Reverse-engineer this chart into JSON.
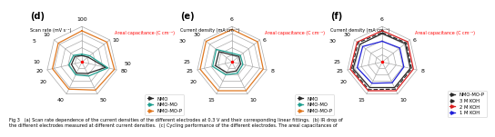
{
  "chart_d": {
    "title": "(d)",
    "num_axes": 7,
    "max_vals": [
      100,
      10,
      80,
      50,
      40,
      20,
      10
    ],
    "tick_labels": [
      "100",
      "10",
      "80",
      "50",
      "40",
      "20",
      "10"
    ],
    "left_label": "Scan rate (mV s⁻¹)",
    "left_vals": [
      "5",
      "10",
      "20"
    ],
    "right_val": "50",
    "red_label": "Areal capacitance (C cm⁻²)",
    "series": {
      "NMO": [
        18,
        2.2,
        55,
        18,
        14,
        6,
        2.5
      ],
      "NMO-MO": [
        22,
        2.8,
        60,
        22,
        16,
        7.5,
        3.0
      ],
      "NMO-MO-P": [
        88,
        9.0,
        75,
        44,
        34,
        17,
        8.5
      ]
    },
    "series_colors": {
      "NMO": "#2a2a2a",
      "NMO-MO": "#20a090",
      "NMO-MO-P": "#e07820"
    },
    "series_styles": {
      "NMO": "-",
      "NMO-MO": "-",
      "NMO-MO-P": "-"
    }
  },
  "chart_e": {
    "title": "(e)",
    "num_axes": 7,
    "max_vals": [
      6,
      6,
      8,
      10,
      15,
      25,
      30
    ],
    "tick_labels": [
      "6",
      "6",
      "8",
      "10",
      "15",
      "25",
      "30"
    ],
    "left_label": "Current density (mA cm⁻²)",
    "left_vals": [
      "30",
      "25",
      "20"
    ],
    "red_label": "Areal capacitance (C cm⁻²)",
    "series": {
      "NMO": [
        1.2,
        1.5,
        2.0,
        2.8,
        5.0,
        12,
        14
      ],
      "NMO-MO": [
        1.5,
        1.8,
        2.5,
        3.5,
        6.0,
        14,
        17
      ],
      "NMO-MO-P": [
        5.5,
        5.5,
        7.2,
        9.0,
        13.5,
        23,
        28
      ]
    },
    "series_colors": {
      "NMO": "#2a2a2a",
      "NMO-MO": "#20a090",
      "NMO-MO-P": "#e07820"
    },
    "series_styles": {
      "NMO": "-",
      "NMO-MO": "-",
      "NMO-MO-P": "-"
    }
  },
  "chart_f": {
    "title": "(f)",
    "num_axes": 7,
    "max_vals": [
      6,
      6,
      8,
      10,
      15,
      25,
      30
    ],
    "tick_labels": [
      "6",
      "6",
      "8",
      "10",
      "15",
      "25",
      "30"
    ],
    "left_label": "Current density (mA cm⁻²)",
    "left_vals": [
      "30",
      "25",
      "20"
    ],
    "red_label": "Areal capacitance (C cm⁻²)",
    "series": {
      "NMO-MO-P": [
        4.8,
        5.0,
        6.5,
        8.0,
        12.0,
        21,
        24
      ],
      "3 M KOH": [
        5.0,
        5.2,
        6.8,
        8.5,
        13.0,
        22,
        26
      ],
      "2 M KOH": [
        5.3,
        5.5,
        7.2,
        9.0,
        13.5,
        23,
        27
      ],
      "1 M KOH": [
        3.5,
        3.8,
        5.0,
        6.5,
        10.0,
        18,
        21
      ]
    },
    "series_colors": {
      "NMO-MO-P": "#2a2a2a",
      "3 M KOH": "#2a2a2a",
      "2 M KOH": "#d92020",
      "1 M KOH": "#2020d9"
    },
    "series_styles": {
      "NMO-MO-P": "-",
      "3 M KOH": "--",
      "2 M KOH": "-",
      "1 M KOH": "-"
    }
  },
  "fig_caption": "Fig 3   (a) Scan rate dependence of the current densities of the different electrodes at 0.3 V and their corresponding linear fittings.  (b) IR drop of\nthe different electrodes measured at different current densities.  (c) Cycling performance of the different electrodes. The areal capacitances of"
}
